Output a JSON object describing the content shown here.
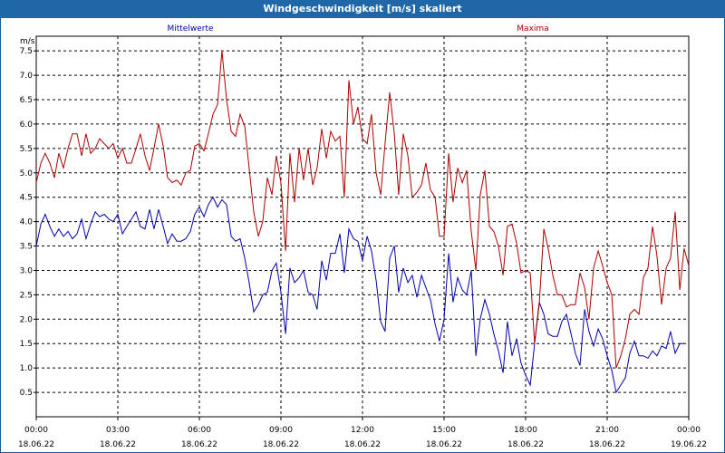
{
  "window": {
    "title": "Windgeschwindigkeit [m/s] skaliert"
  },
  "chart_data": {
    "type": "line",
    "title": "Windgeschwindigkeit [m/s] skaliert",
    "ylabel": "m/s",
    "xlabel": "",
    "ylim": [
      0,
      7.8
    ],
    "xlim": [
      0,
      24
    ],
    "x_unit": "hours since 18.06.22 00:00",
    "yticks": [
      "0.5",
      "1.0",
      "1.5",
      "2.0",
      "2.5",
      "3.0",
      "3.5",
      "4.0",
      "4.5",
      "5.0",
      "5.5",
      "6.0",
      "6.5",
      "7.0",
      "7.5"
    ],
    "ytick_values": [
      0.5,
      1.0,
      1.5,
      2.0,
      2.5,
      3.0,
      3.5,
      4.0,
      4.5,
      5.0,
      5.5,
      6.0,
      6.5,
      7.0,
      7.5
    ],
    "xticks": [
      {
        "time": "00:00",
        "date": "18.06.22"
      },
      {
        "time": "03:00",
        "date": "18.06.22"
      },
      {
        "time": "06:00",
        "date": "18.06.22"
      },
      {
        "time": "09:00",
        "date": "18.06.22"
      },
      {
        "time": "12:00",
        "date": "18.06.22"
      },
      {
        "time": "15:00",
        "date": "18.06.22"
      },
      {
        "time": "18:00",
        "date": "18.06.22"
      },
      {
        "time": "21:00",
        "date": "18.06.22"
      },
      {
        "time": "00:00",
        "date": "19.06.22"
      }
    ],
    "grid": true,
    "legend_placement": "top",
    "series": [
      {
        "name": "Mittelwerte",
        "color": "#0000aa",
        "values": [
          [
            0.0,
            3.5
          ],
          [
            0.17,
            3.95
          ],
          [
            0.33,
            4.15
          ],
          [
            0.5,
            3.9
          ],
          [
            0.67,
            3.7
          ],
          [
            0.83,
            3.85
          ],
          [
            1.0,
            3.7
          ],
          [
            1.17,
            3.8
          ],
          [
            1.33,
            3.65
          ],
          [
            1.5,
            3.75
          ],
          [
            1.67,
            4.05
          ],
          [
            1.83,
            3.65
          ],
          [
            2.0,
            3.95
          ],
          [
            2.17,
            4.2
          ],
          [
            2.33,
            4.1
          ],
          [
            2.5,
            4.15
          ],
          [
            2.67,
            4.05
          ],
          [
            2.83,
            4.0
          ],
          [
            3.0,
            4.15
          ],
          [
            3.17,
            3.75
          ],
          [
            3.33,
            3.9
          ],
          [
            3.5,
            4.05
          ],
          [
            3.67,
            4.2
          ],
          [
            3.83,
            3.9
          ],
          [
            4.0,
            3.85
          ],
          [
            4.17,
            4.25
          ],
          [
            4.33,
            3.85
          ],
          [
            4.5,
            4.25
          ],
          [
            4.67,
            3.9
          ],
          [
            4.83,
            3.55
          ],
          [
            5.0,
            3.75
          ],
          [
            5.17,
            3.6
          ],
          [
            5.33,
            3.6
          ],
          [
            5.5,
            3.65
          ],
          [
            5.67,
            3.8
          ],
          [
            5.83,
            4.15
          ],
          [
            6.0,
            4.3
          ],
          [
            6.17,
            4.1
          ],
          [
            6.33,
            4.35
          ],
          [
            6.5,
            4.5
          ],
          [
            6.67,
            4.3
          ],
          [
            6.83,
            4.45
          ],
          [
            7.0,
            4.35
          ],
          [
            7.17,
            3.7
          ],
          [
            7.33,
            3.6
          ],
          [
            7.5,
            3.65
          ],
          [
            7.67,
            3.25
          ],
          [
            7.83,
            2.75
          ],
          [
            8.0,
            2.15
          ],
          [
            8.17,
            2.3
          ],
          [
            8.33,
            2.5
          ],
          [
            8.5,
            2.55
          ],
          [
            8.67,
            3.0
          ],
          [
            8.83,
            3.15
          ],
          [
            9.0,
            2.55
          ],
          [
            9.17,
            1.7
          ],
          [
            9.33,
            3.05
          ],
          [
            9.5,
            2.75
          ],
          [
            9.67,
            2.85
          ],
          [
            9.83,
            3.0
          ],
          [
            10.0,
            2.55
          ],
          [
            10.17,
            2.5
          ],
          [
            10.33,
            2.2
          ],
          [
            10.5,
            3.2
          ],
          [
            10.67,
            2.8
          ],
          [
            10.83,
            3.35
          ],
          [
            11.0,
            3.35
          ],
          [
            11.17,
            3.75
          ],
          [
            11.33,
            2.95
          ],
          [
            11.5,
            3.85
          ],
          [
            11.67,
            3.65
          ],
          [
            11.83,
            3.6
          ],
          [
            12.0,
            3.2
          ],
          [
            12.17,
            3.7
          ],
          [
            12.33,
            3.4
          ],
          [
            12.5,
            2.8
          ],
          [
            12.67,
            1.95
          ],
          [
            12.83,
            1.75
          ],
          [
            13.0,
            3.25
          ],
          [
            13.17,
            3.5
          ],
          [
            13.33,
            2.55
          ],
          [
            13.5,
            3.05
          ],
          [
            13.67,
            2.75
          ],
          [
            13.83,
            2.9
          ],
          [
            14.0,
            2.45
          ],
          [
            14.17,
            2.9
          ],
          [
            14.33,
            2.65
          ],
          [
            14.5,
            2.4
          ],
          [
            14.67,
            1.9
          ],
          [
            14.83,
            1.55
          ],
          [
            15.0,
            2.0
          ],
          [
            15.17,
            3.35
          ],
          [
            15.33,
            2.35
          ],
          [
            15.5,
            2.85
          ],
          [
            15.67,
            2.6
          ],
          [
            15.83,
            2.5
          ],
          [
            16.0,
            3.0
          ],
          [
            16.17,
            1.25
          ],
          [
            16.33,
            2.0
          ],
          [
            16.5,
            2.4
          ],
          [
            16.67,
            2.1
          ],
          [
            16.83,
            1.7
          ],
          [
            17.0,
            1.35
          ],
          [
            17.17,
            0.9
          ],
          [
            17.33,
            1.95
          ],
          [
            17.5,
            1.25
          ],
          [
            17.67,
            1.6
          ],
          [
            17.83,
            1.1
          ],
          [
            18.0,
            0.85
          ],
          [
            18.17,
            0.65
          ],
          [
            18.33,
            1.5
          ],
          [
            18.5,
            2.35
          ],
          [
            18.67,
            2.1
          ],
          [
            18.83,
            1.7
          ],
          [
            19.0,
            1.65
          ],
          [
            19.17,
            1.65
          ],
          [
            19.33,
            1.95
          ],
          [
            19.5,
            2.1
          ],
          [
            19.67,
            1.7
          ],
          [
            19.83,
            1.3
          ],
          [
            20.0,
            1.05
          ],
          [
            20.17,
            2.2
          ],
          [
            20.33,
            1.75
          ],
          [
            20.5,
            1.45
          ],
          [
            20.67,
            1.8
          ],
          [
            20.83,
            1.6
          ],
          [
            21.0,
            1.25
          ],
          [
            21.17,
            0.95
          ],
          [
            21.33,
            0.5
          ],
          [
            21.5,
            0.65
          ],
          [
            21.67,
            0.8
          ],
          [
            21.83,
            1.3
          ],
          [
            22.0,
            1.55
          ],
          [
            22.17,
            1.25
          ],
          [
            22.33,
            1.25
          ],
          [
            22.5,
            1.2
          ],
          [
            22.67,
            1.35
          ],
          [
            22.83,
            1.25
          ],
          [
            23.0,
            1.45
          ],
          [
            23.17,
            1.4
          ],
          [
            23.33,
            1.75
          ],
          [
            23.5,
            1.3
          ],
          [
            23.67,
            1.5
          ],
          [
            23.83,
            1.5
          ]
        ]
      },
      {
        "name": "Maxima",
        "color": "#aa0000",
        "values": [
          [
            0.0,
            4.8
          ],
          [
            0.17,
            5.2
          ],
          [
            0.33,
            5.4
          ],
          [
            0.5,
            5.2
          ],
          [
            0.67,
            4.9
          ],
          [
            0.83,
            5.4
          ],
          [
            1.0,
            5.1
          ],
          [
            1.17,
            5.5
          ],
          [
            1.33,
            5.8
          ],
          [
            1.5,
            5.8
          ],
          [
            1.67,
            5.35
          ],
          [
            1.83,
            5.8
          ],
          [
            2.0,
            5.4
          ],
          [
            2.17,
            5.5
          ],
          [
            2.33,
            5.7
          ],
          [
            2.5,
            5.6
          ],
          [
            2.67,
            5.5
          ],
          [
            2.83,
            5.6
          ],
          [
            3.0,
            5.3
          ],
          [
            3.17,
            5.5
          ],
          [
            3.33,
            5.2
          ],
          [
            3.5,
            5.2
          ],
          [
            3.67,
            5.5
          ],
          [
            3.83,
            5.8
          ],
          [
            4.0,
            5.35
          ],
          [
            4.17,
            5.05
          ],
          [
            4.33,
            5.5
          ],
          [
            4.5,
            6.0
          ],
          [
            4.67,
            5.55
          ],
          [
            4.83,
            4.9
          ],
          [
            5.0,
            4.8
          ],
          [
            5.17,
            4.85
          ],
          [
            5.33,
            4.75
          ],
          [
            5.5,
            5.0
          ],
          [
            5.67,
            5.05
          ],
          [
            5.83,
            5.55
          ],
          [
            6.0,
            5.6
          ],
          [
            6.17,
            5.45
          ],
          [
            6.33,
            5.8
          ],
          [
            6.5,
            6.2
          ],
          [
            6.67,
            6.4
          ],
          [
            6.83,
            7.5
          ],
          [
            7.0,
            6.5
          ],
          [
            7.17,
            5.85
          ],
          [
            7.33,
            5.75
          ],
          [
            7.5,
            6.2
          ],
          [
            7.67,
            5.95
          ],
          [
            7.83,
            5.1
          ],
          [
            8.0,
            4.2
          ],
          [
            8.17,
            3.7
          ],
          [
            8.33,
            4.0
          ],
          [
            8.5,
            4.9
          ],
          [
            8.67,
            4.55
          ],
          [
            8.83,
            5.35
          ],
          [
            9.0,
            4.8
          ],
          [
            9.17,
            3.4
          ],
          [
            9.33,
            5.4
          ],
          [
            9.5,
            4.4
          ],
          [
            9.67,
            5.5
          ],
          [
            9.83,
            4.85
          ],
          [
            10.0,
            5.5
          ],
          [
            10.17,
            4.75
          ],
          [
            10.33,
            5.1
          ],
          [
            10.5,
            5.9
          ],
          [
            10.67,
            5.3
          ],
          [
            10.83,
            5.85
          ],
          [
            11.0,
            5.65
          ],
          [
            11.17,
            5.75
          ],
          [
            11.33,
            4.5
          ],
          [
            11.5,
            6.9
          ],
          [
            11.67,
            6.0
          ],
          [
            11.83,
            6.35
          ],
          [
            12.0,
            5.7
          ],
          [
            12.17,
            5.6
          ],
          [
            12.33,
            6.2
          ],
          [
            12.5,
            5.0
          ],
          [
            12.67,
            4.55
          ],
          [
            12.83,
            5.6
          ],
          [
            13.0,
            6.65
          ],
          [
            13.17,
            5.8
          ],
          [
            13.33,
            4.55
          ],
          [
            13.5,
            5.8
          ],
          [
            13.67,
            5.35
          ],
          [
            13.83,
            4.5
          ],
          [
            14.0,
            4.6
          ],
          [
            14.17,
            4.75
          ],
          [
            14.33,
            5.2
          ],
          [
            14.5,
            4.65
          ],
          [
            14.67,
            4.5
          ],
          [
            14.83,
            3.7
          ],
          [
            15.0,
            3.7
          ],
          [
            15.17,
            5.4
          ],
          [
            15.33,
            4.4
          ],
          [
            15.5,
            5.1
          ],
          [
            15.67,
            4.8
          ],
          [
            15.83,
            5.05
          ],
          [
            16.0,
            3.8
          ],
          [
            16.17,
            3.0
          ],
          [
            16.33,
            4.55
          ],
          [
            16.5,
            5.05
          ],
          [
            16.67,
            3.9
          ],
          [
            16.83,
            3.8
          ],
          [
            17.0,
            3.5
          ],
          [
            17.17,
            2.9
          ],
          [
            17.33,
            3.9
          ],
          [
            17.5,
            3.95
          ],
          [
            17.67,
            3.55
          ],
          [
            17.83,
            2.95
          ],
          [
            18.0,
            3.0
          ],
          [
            18.17,
            2.95
          ],
          [
            18.33,
            1.5
          ],
          [
            18.5,
            2.3
          ],
          [
            18.67,
            3.85
          ],
          [
            18.83,
            3.45
          ],
          [
            19.0,
            2.9
          ],
          [
            19.17,
            2.5
          ],
          [
            19.33,
            2.5
          ],
          [
            19.5,
            2.25
          ],
          [
            19.67,
            2.3
          ],
          [
            19.83,
            2.3
          ],
          [
            20.0,
            2.95
          ],
          [
            20.17,
            2.65
          ],
          [
            20.33,
            2.0
          ],
          [
            20.5,
            3.05
          ],
          [
            20.67,
            3.4
          ],
          [
            20.83,
            3.1
          ],
          [
            21.0,
            2.75
          ],
          [
            21.17,
            2.5
          ],
          [
            21.33,
            1.0
          ],
          [
            21.5,
            1.25
          ],
          [
            21.67,
            1.6
          ],
          [
            21.83,
            2.1
          ],
          [
            22.0,
            2.2
          ],
          [
            22.17,
            2.1
          ],
          [
            22.33,
            2.85
          ],
          [
            22.5,
            3.05
          ],
          [
            22.67,
            3.9
          ],
          [
            22.83,
            3.3
          ],
          [
            23.0,
            2.3
          ],
          [
            23.17,
            3.05
          ],
          [
            23.33,
            3.25
          ],
          [
            23.5,
            4.2
          ],
          [
            23.67,
            2.6
          ],
          [
            23.83,
            3.45
          ],
          [
            24.0,
            3.1
          ]
        ]
      }
    ]
  }
}
